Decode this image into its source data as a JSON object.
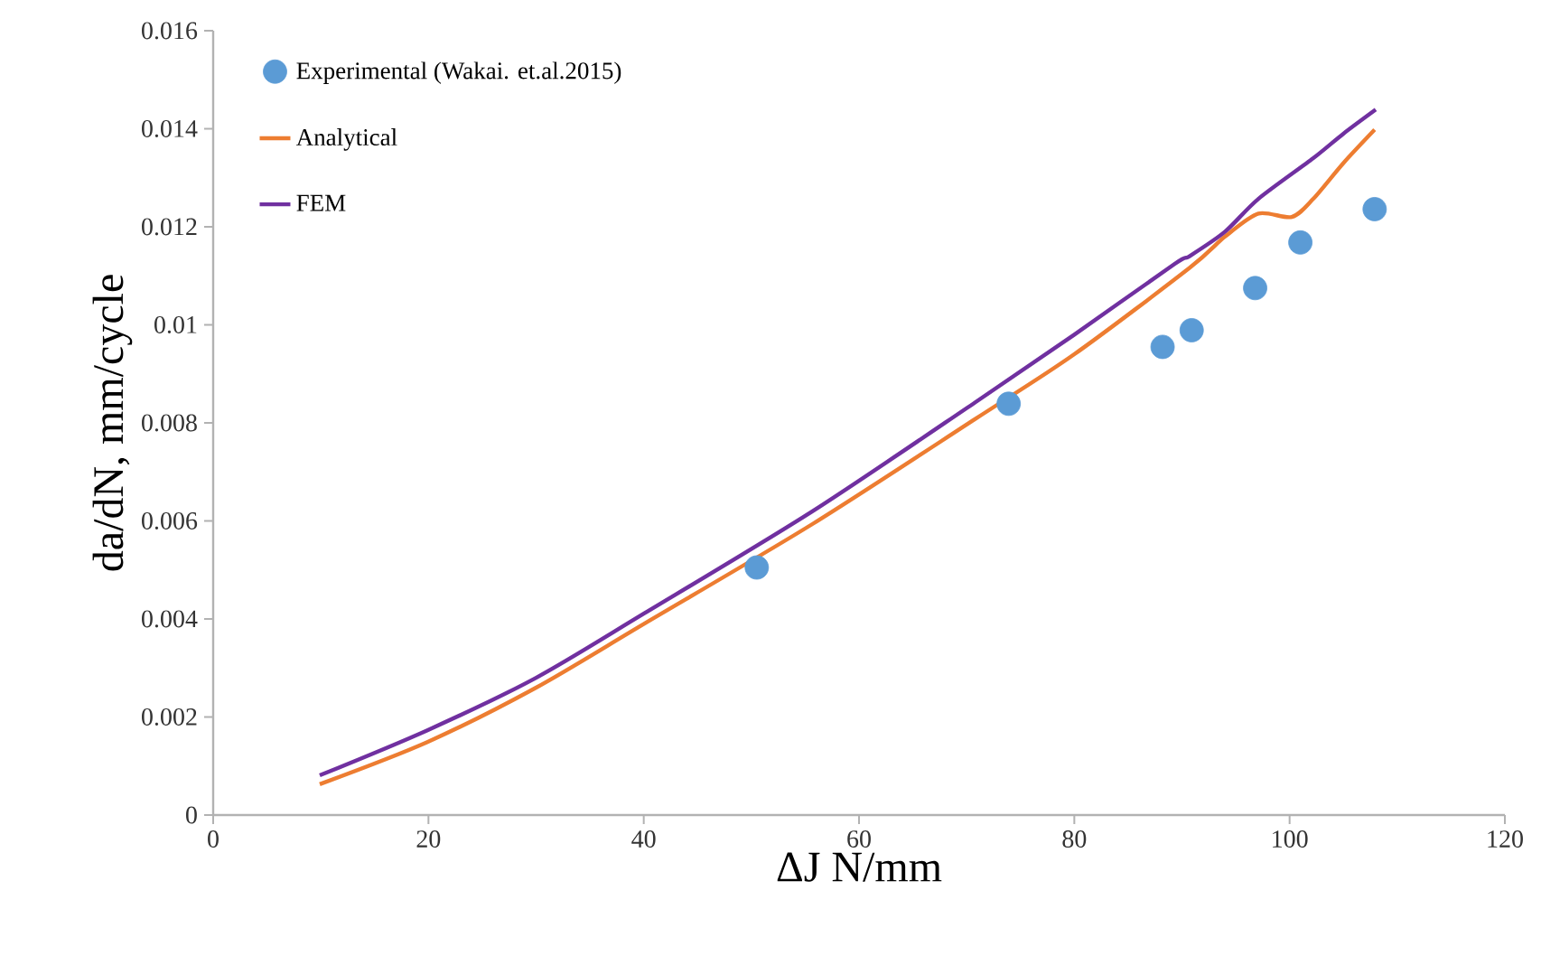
{
  "chart_data": {
    "type": "line",
    "xlabel": "ΔJ N/mm",
    "ylabel": "da/dN, mm/cycle",
    "xlim": [
      0,
      120
    ],
    "ylim": [
      0,
      0.016
    ],
    "xticks": [
      0,
      20,
      40,
      60,
      80,
      100,
      120
    ],
    "yticks": [
      0,
      0.002,
      0.004,
      0.006,
      0.008,
      0.01,
      0.012,
      0.014,
      0.016
    ],
    "legend": "top left",
    "grid": false,
    "series": [
      {
        "name": "Experimental (Wakai. et.al.2015)",
        "type": "scatter",
        "color": "#5b9bd5",
        "marker": "circle",
        "x": [
          50.5,
          73.9,
          88.2,
          90.9,
          96.8,
          101.0,
          107.9
        ],
        "values": [
          0.00505,
          0.00839,
          0.00955,
          0.00989,
          0.01075,
          0.01168,
          0.01236
        ]
      },
      {
        "name": "Analytical",
        "color": "#ed7d31",
        "x": [
          9.9,
          19.9,
          30,
          40.1,
          55.7,
          70.8,
          80,
          90.7,
          94,
          97.1,
          100.2,
          102.2,
          105,
          107.9
        ],
        "values": [
          0.00063,
          0.00149,
          0.0026,
          0.00391,
          0.00594,
          0.00808,
          0.0094,
          0.01116,
          0.0118,
          0.01227,
          0.0122,
          0.01257,
          0.0133,
          0.01398
        ]
      },
      {
        "name": "FEM",
        "color": "#7030a0",
        "x": [
          9.9,
          19.9,
          30,
          40.1,
          55.7,
          70.8,
          80,
          89.3,
          90.7,
          94,
          97.1,
          102.2,
          105,
          108
        ],
        "values": [
          0.00081,
          0.00173,
          0.0028,
          0.00412,
          0.0062,
          0.00842,
          0.0098,
          0.01124,
          0.0114,
          0.0119,
          0.01257,
          0.0134,
          0.0139,
          0.01439
        ]
      }
    ]
  }
}
